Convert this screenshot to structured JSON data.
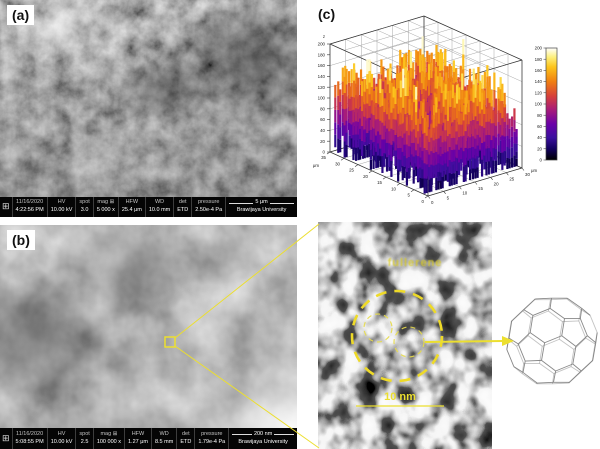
{
  "colors": {
    "annotation_yellow": "#ecdf2f",
    "sem_bar_background": "#050505"
  },
  "panel_a": {
    "label": "(a)",
    "meta": {
      "date": "11/16/2020",
      "time": "4:22:56 PM",
      "cols": [
        {
          "h": "HV",
          "v": "10.00 kV"
        },
        {
          "h": "spot",
          "v": "3.0"
        },
        {
          "h": "mag ⊞",
          "v": "5 000 x"
        },
        {
          "h": "HFW",
          "v": "25.4 μm"
        },
        {
          "h": "WD",
          "v": "10.0 mm"
        },
        {
          "h": "det",
          "v": "ETD"
        },
        {
          "h": "pressure",
          "v": "2.50e-4 Pa"
        }
      ],
      "scale": "5 μm",
      "org": "Brawijaya University"
    }
  },
  "panel_b": {
    "label": "(b)",
    "meta": {
      "date": "11/16/2020",
      "time": "5:08:55 PM",
      "cols": [
        {
          "h": "HV",
          "v": "10.00 kV"
        },
        {
          "h": "spot",
          "v": "2.5"
        },
        {
          "h": "mag ⊞",
          "v": "100 000 x"
        },
        {
          "h": "HFW",
          "v": "1.27 μm"
        },
        {
          "h": "WD",
          "v": "8.5 mm"
        },
        {
          "h": "det",
          "v": "ETD"
        },
        {
          "h": "pressure",
          "v": "1.79e-4 Pa"
        }
      ],
      "scale": "200 nm",
      "org": "Brawijaya University"
    }
  },
  "panel_c": {
    "label": "(c)"
  },
  "inset": {
    "label": "fullerene",
    "scale": "10 nm"
  },
  "chart_data": {
    "type": "surface",
    "title": "",
    "x_axis": {
      "unit": "μm",
      "ticks": [
        0,
        5,
        10,
        15,
        20,
        25,
        30
      ],
      "range": [
        0,
        30
      ]
    },
    "y_axis": {
      "unit": "μm",
      "ticks": [
        0,
        5,
        10,
        15,
        20,
        25,
        30,
        35
      ],
      "range": [
        0,
        35
      ]
    },
    "z_axis": {
      "label": "z",
      "ticks": [
        0,
        20,
        40,
        60,
        80,
        100,
        120,
        140,
        160,
        180,
        200
      ],
      "range": [
        0,
        200
      ]
    },
    "colorbar": {
      "min": 0,
      "max": 200,
      "ticks": [
        0,
        20,
        40,
        60,
        80,
        100,
        120,
        140,
        160,
        180,
        200
      ],
      "position": "right"
    },
    "colormap_stops": [
      [
        0.0,
        "#000000"
      ],
      [
        0.1,
        "#12005e"
      ],
      [
        0.2,
        "#3b0f9e"
      ],
      [
        0.32,
        "#6a00a8"
      ],
      [
        0.45,
        "#a81c79"
      ],
      [
        0.57,
        "#d6403b"
      ],
      [
        0.7,
        "#f07f12"
      ],
      [
        0.83,
        "#fcc41c"
      ],
      [
        0.92,
        "#fdf07e"
      ],
      [
        1.0,
        "#ffffff"
      ]
    ],
    "grid": true,
    "legend": false,
    "description": "3D surface roughness topography with jagged spikes colored by height (0-200 scale), x and y in micrometers"
  }
}
